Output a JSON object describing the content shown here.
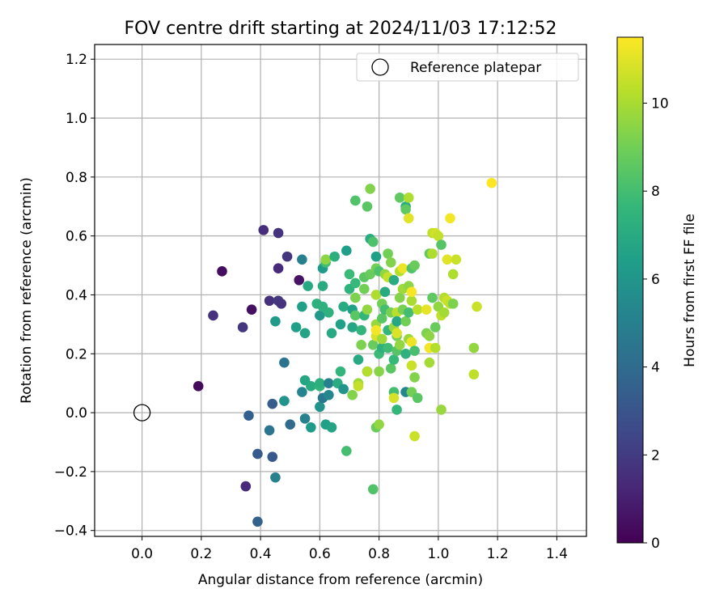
{
  "chart_data": {
    "type": "scatter",
    "title": "FOV centre drift starting at 2024/11/03 17:12:52",
    "xlabel": "Angular distance from reference (arcmin)",
    "ylabel": "Rotation from reference (arcmin)",
    "xlim": [
      -0.16,
      1.5
    ],
    "ylim": [
      -0.42,
      1.25
    ],
    "xticks": [
      0.0,
      0.2,
      0.4,
      0.6,
      0.8,
      1.0,
      1.2,
      1.4
    ],
    "yticks": [
      -0.4,
      -0.2,
      0.0,
      0.2,
      0.4,
      0.6,
      0.8,
      1.0,
      1.2
    ],
    "xtick_labels": [
      "0.0",
      "0.2",
      "0.4",
      "0.6",
      "0.8",
      "1.0",
      "1.2",
      "1.4"
    ],
    "ytick_labels": [
      "−0.4",
      "−0.2",
      "0.0",
      "0.2",
      "0.4",
      "0.6",
      "0.8",
      "1.0",
      "1.2"
    ],
    "grid": true,
    "legend": {
      "position": "top-right",
      "entries": [
        "Reference platepar"
      ]
    },
    "reference_point": {
      "x": 0.0,
      "y": 0.0
    },
    "colormap": "viridis",
    "colorbar": {
      "label": "Hours from first FF file",
      "min": 0,
      "max": 11.5,
      "ticks": [
        0,
        2,
        4,
        6,
        8,
        10
      ],
      "tick_labels": [
        "0",
        "2",
        "4",
        "6",
        "8",
        "10"
      ]
    },
    "points": [
      {
        "x": 0.19,
        "y": 0.09,
        "c": 0.3
      },
      {
        "x": 0.27,
        "y": 0.48,
        "c": 0.4
      },
      {
        "x": 0.24,
        "y": 0.33,
        "c": 1.6
      },
      {
        "x": 0.34,
        "y": 0.29,
        "c": 1.8
      },
      {
        "x": 0.37,
        "y": 0.35,
        "c": 0.5
      },
      {
        "x": 0.41,
        "y": 0.62,
        "c": 1.5
      },
      {
        "x": 0.43,
        "y": 0.38,
        "c": 1.6
      },
      {
        "x": 0.46,
        "y": 0.61,
        "c": 1.7
      },
      {
        "x": 0.46,
        "y": 0.49,
        "c": 1.4
      },
      {
        "x": 0.46,
        "y": 0.38,
        "c": 1.9
      },
      {
        "x": 0.47,
        "y": 0.37,
        "c": 1.7
      },
      {
        "x": 0.49,
        "y": 0.53,
        "c": 1.8
      },
      {
        "x": 0.53,
        "y": 0.45,
        "c": 0.6
      },
      {
        "x": 0.35,
        "y": -0.25,
        "c": 1.4
      },
      {
        "x": 0.36,
        "y": -0.01,
        "c": 3.5
      },
      {
        "x": 0.39,
        "y": -0.14,
        "c": 3.3
      },
      {
        "x": 0.39,
        "y": -0.37,
        "c": 3.6
      },
      {
        "x": 0.43,
        "y": -0.06,
        "c": 4.5
      },
      {
        "x": 0.44,
        "y": 0.03,
        "c": 3.4
      },
      {
        "x": 0.44,
        "y": -0.15,
        "c": 3.2
      },
      {
        "x": 0.45,
        "y": -0.22,
        "c": 5.0
      },
      {
        "x": 0.48,
        "y": 0.04,
        "c": 6.0
      },
      {
        "x": 0.48,
        "y": 0.17,
        "c": 4.4
      },
      {
        "x": 0.45,
        "y": 0.31,
        "c": 6.2
      },
      {
        "x": 0.5,
        "y": -0.04,
        "c": 4.0
      },
      {
        "x": 0.52,
        "y": 0.29,
        "c": 6.5
      },
      {
        "x": 0.54,
        "y": 0.52,
        "c": 5.0
      },
      {
        "x": 0.54,
        "y": 0.36,
        "c": 6.5
      },
      {
        "x": 0.55,
        "y": 0.27,
        "c": 6.7
      },
      {
        "x": 0.55,
        "y": 0.11,
        "c": 6.8
      },
      {
        "x": 0.55,
        "y": -0.02,
        "c": 5.0
      },
      {
        "x": 0.56,
        "y": 0.43,
        "c": 6.9
      },
      {
        "x": 0.57,
        "y": -0.05,
        "c": 6.3
      },
      {
        "x": 0.54,
        "y": 0.07,
        "c": 5.2
      },
      {
        "x": 0.57,
        "y": 0.09,
        "c": 7.0
      },
      {
        "x": 0.59,
        "y": 0.37,
        "c": 7.3
      },
      {
        "x": 0.6,
        "y": 0.09,
        "c": 7.6
      },
      {
        "x": 0.6,
        "y": 0.1,
        "c": 7.2
      },
      {
        "x": 0.6,
        "y": 0.02,
        "c": 5.9
      },
      {
        "x": 0.6,
        "y": 0.33,
        "c": 6.1
      },
      {
        "x": 0.61,
        "y": 0.49,
        "c": 6.3
      },
      {
        "x": 0.61,
        "y": 0.43,
        "c": 7.0
      },
      {
        "x": 0.61,
        "y": 0.36,
        "c": 7.3
      },
      {
        "x": 0.61,
        "y": 0.05,
        "c": 4.6
      },
      {
        "x": 0.62,
        "y": -0.04,
        "c": 6.5
      },
      {
        "x": 0.62,
        "y": 0.51,
        "c": 8.0
      },
      {
        "x": 0.62,
        "y": 0.52,
        "c": 9.5
      },
      {
        "x": 0.63,
        "y": 0.06,
        "c": 5.3
      },
      {
        "x": 0.63,
        "y": 0.1,
        "c": 5.0
      },
      {
        "x": 0.63,
        "y": 0.34,
        "c": 7.3
      },
      {
        "x": 0.64,
        "y": 0.27,
        "c": 6.9
      },
      {
        "x": 0.64,
        "y": -0.05,
        "c": 6.7
      },
      {
        "x": 0.65,
        "y": 0.53,
        "c": 7.2
      },
      {
        "x": 0.66,
        "y": 0.1,
        "c": 7.1
      },
      {
        "x": 0.67,
        "y": 0.14,
        "c": 7.5
      },
      {
        "x": 0.67,
        "y": 0.3,
        "c": 6.5
      },
      {
        "x": 0.68,
        "y": 0.08,
        "c": 6.0
      },
      {
        "x": 0.68,
        "y": 0.36,
        "c": 7.0
      },
      {
        "x": 0.69,
        "y": 0.55,
        "c": 6.4
      },
      {
        "x": 0.69,
        "y": -0.13,
        "c": 8.0
      },
      {
        "x": 0.7,
        "y": 0.47,
        "c": 7.8
      },
      {
        "x": 0.7,
        "y": 0.42,
        "c": 7.4
      },
      {
        "x": 0.71,
        "y": 0.29,
        "c": 6.8
      },
      {
        "x": 0.71,
        "y": 0.35,
        "c": 6.5
      },
      {
        "x": 0.71,
        "y": 0.06,
        "c": 9.3
      },
      {
        "x": 0.72,
        "y": 0.72,
        "c": 8.3
      },
      {
        "x": 0.72,
        "y": 0.44,
        "c": 7.7
      },
      {
        "x": 0.72,
        "y": 0.39,
        "c": 9.2
      },
      {
        "x": 0.72,
        "y": 0.33,
        "c": 8.5
      },
      {
        "x": 0.73,
        "y": 0.18,
        "c": 6.9
      },
      {
        "x": 0.73,
        "y": 0.1,
        "c": 9.8
      },
      {
        "x": 0.73,
        "y": 0.09,
        "c": 10.5
      },
      {
        "x": 0.74,
        "y": 0.23,
        "c": 9.2
      },
      {
        "x": 0.74,
        "y": 0.28,
        "c": 7.5
      },
      {
        "x": 0.75,
        "y": 0.46,
        "c": 8.5
      },
      {
        "x": 0.75,
        "y": 0.33,
        "c": 7.6
      },
      {
        "x": 0.75,
        "y": 0.42,
        "c": 9.0
      },
      {
        "x": 0.76,
        "y": 0.14,
        "c": 6.8
      },
      {
        "x": 0.76,
        "y": 0.7,
        "c": 8.5
      },
      {
        "x": 0.76,
        "y": 0.35,
        "c": 9.6
      },
      {
        "x": 0.76,
        "y": 0.14,
        "c": 10.2
      },
      {
        "x": 0.77,
        "y": 0.59,
        "c": 7.1
      },
      {
        "x": 0.77,
        "y": 0.47,
        "c": 8.8
      },
      {
        "x": 0.77,
        "y": 0.76,
        "c": 9.3
      },
      {
        "x": 0.78,
        "y": 0.58,
        "c": 8.2
      },
      {
        "x": 0.78,
        "y": 0.23,
        "c": 8.8
      },
      {
        "x": 0.78,
        "y": -0.26,
        "c": 8.3
      },
      {
        "x": 0.79,
        "y": 0.53,
        "c": 6.5
      },
      {
        "x": 0.79,
        "y": 0.49,
        "c": 9.0
      },
      {
        "x": 0.79,
        "y": 0.3,
        "c": 9.7
      },
      {
        "x": 0.79,
        "y": 0.26,
        "c": 10.8
      },
      {
        "x": 0.79,
        "y": 0.28,
        "c": 11.3
      },
      {
        "x": 0.79,
        "y": 0.4,
        "c": 10.1
      },
      {
        "x": 0.79,
        "y": -0.05,
        "c": 8.8
      },
      {
        "x": 0.8,
        "y": 0.2,
        "c": 7.8
      },
      {
        "x": 0.8,
        "y": 0.48,
        "c": 8.2
      },
      {
        "x": 0.8,
        "y": 0.14,
        "c": 9.4
      },
      {
        "x": 0.8,
        "y": -0.04,
        "c": 9.6
      },
      {
        "x": 0.81,
        "y": 0.22,
        "c": 7.3
      },
      {
        "x": 0.81,
        "y": 0.32,
        "c": 8.5
      },
      {
        "x": 0.81,
        "y": 0.37,
        "c": 9.0
      },
      {
        "x": 0.81,
        "y": 0.25,
        "c": 9.8
      },
      {
        "x": 0.82,
        "y": 0.41,
        "c": 7.0
      },
      {
        "x": 0.82,
        "y": 0.35,
        "c": 8.0
      },
      {
        "x": 0.82,
        "y": 0.47,
        "c": 9.6
      },
      {
        "x": 0.83,
        "y": 0.54,
        "c": 9.0
      },
      {
        "x": 0.83,
        "y": 0.46,
        "c": 10.5
      },
      {
        "x": 0.83,
        "y": 0.28,
        "c": 7.6
      },
      {
        "x": 0.83,
        "y": 0.22,
        "c": 7.9
      },
      {
        "x": 0.84,
        "y": 0.51,
        "c": 9.3
      },
      {
        "x": 0.84,
        "y": 0.34,
        "c": 9.1
      },
      {
        "x": 0.84,
        "y": 0.15,
        "c": 8.5
      },
      {
        "x": 0.85,
        "y": 0.07,
        "c": 8.0
      },
      {
        "x": 0.85,
        "y": 0.45,
        "c": 7.0
      },
      {
        "x": 0.85,
        "y": 0.29,
        "c": 9.7
      },
      {
        "x": 0.85,
        "y": 0.18,
        "c": 7.7
      },
      {
        "x": 0.85,
        "y": 0.05,
        "c": 10.8
      },
      {
        "x": 0.86,
        "y": 0.26,
        "c": 9.1
      },
      {
        "x": 0.86,
        "y": 0.27,
        "c": 10.9
      },
      {
        "x": 0.86,
        "y": 0.34,
        "c": 10.3
      },
      {
        "x": 0.86,
        "y": 0.01,
        "c": 7.6
      },
      {
        "x": 0.86,
        "y": 0.31,
        "c": 6.8
      },
      {
        "x": 0.86,
        "y": 0.21,
        "c": 8.4
      },
      {
        "x": 0.87,
        "y": 0.73,
        "c": 8.6
      },
      {
        "x": 0.87,
        "y": 0.39,
        "c": 9.3
      },
      {
        "x": 0.87,
        "y": 0.23,
        "c": 9.6
      },
      {
        "x": 0.87,
        "y": 0.48,
        "c": 10.2
      },
      {
        "x": 0.88,
        "y": 0.42,
        "c": 9.8
      },
      {
        "x": 0.88,
        "y": 0.35,
        "c": 9.1
      },
      {
        "x": 0.88,
        "y": 0.49,
        "c": 11.2
      },
      {
        "x": 0.89,
        "y": 0.07,
        "c": 5.3
      },
      {
        "x": 0.89,
        "y": 0.7,
        "c": 7.2
      },
      {
        "x": 0.89,
        "y": 0.69,
        "c": 8.6
      },
      {
        "x": 0.89,
        "y": 0.31,
        "c": 9.0
      },
      {
        "x": 0.89,
        "y": 0.2,
        "c": 7.3
      },
      {
        "x": 0.9,
        "y": 0.34,
        "c": 8.0
      },
      {
        "x": 0.9,
        "y": 0.25,
        "c": 9.7
      },
      {
        "x": 0.9,
        "y": 0.43,
        "c": 9.5
      },
      {
        "x": 0.9,
        "y": 0.73,
        "c": 10.1
      },
      {
        "x": 0.9,
        "y": 0.66,
        "c": 11.0
      },
      {
        "x": 0.91,
        "y": 0.07,
        "c": 9.0
      },
      {
        "x": 0.91,
        "y": 0.49,
        "c": 8.3
      },
      {
        "x": 0.91,
        "y": 0.38,
        "c": 10.0
      },
      {
        "x": 0.91,
        "y": 0.41,
        "c": 11.4
      },
      {
        "x": 0.91,
        "y": 0.16,
        "c": 10.6
      },
      {
        "x": 0.91,
        "y": 0.24,
        "c": 11.2
      },
      {
        "x": 0.92,
        "y": 0.21,
        "c": 8.1
      },
      {
        "x": 0.92,
        "y": 0.12,
        "c": 9.3
      },
      {
        "x": 0.92,
        "y": -0.08,
        "c": 10.6
      },
      {
        "x": 0.92,
        "y": 0.5,
        "c": 8.8
      },
      {
        "x": 0.93,
        "y": 0.05,
        "c": 8.5
      },
      {
        "x": 0.93,
        "y": 0.35,
        "c": 10.3
      },
      {
        "x": 0.96,
        "y": 0.27,
        "c": 9.2
      },
      {
        "x": 0.96,
        "y": 0.35,
        "c": 11.1
      },
      {
        "x": 0.97,
        "y": 0.54,
        "c": 8.7
      },
      {
        "x": 0.97,
        "y": 0.26,
        "c": 9.5
      },
      {
        "x": 0.97,
        "y": 0.17,
        "c": 9.9
      },
      {
        "x": 0.97,
        "y": 0.22,
        "c": 11.3
      },
      {
        "x": 0.98,
        "y": 0.39,
        "c": 8.6
      },
      {
        "x": 0.98,
        "y": 0.54,
        "c": 10.1
      },
      {
        "x": 0.98,
        "y": 0.61,
        "c": 10.4
      },
      {
        "x": 0.99,
        "y": 0.29,
        "c": 8.8
      },
      {
        "x": 0.99,
        "y": 0.61,
        "c": 10.7
      },
      {
        "x": 0.99,
        "y": 0.22,
        "c": 10.2
      },
      {
        "x": 1.0,
        "y": 0.6,
        "c": 10.5
      },
      {
        "x": 1.0,
        "y": 0.36,
        "c": 9.6
      },
      {
        "x": 1.01,
        "y": 0.57,
        "c": 8.4
      },
      {
        "x": 1.01,
        "y": 0.33,
        "c": 10.4
      },
      {
        "x": 1.01,
        "y": 0.01,
        "c": 9.7
      },
      {
        "x": 1.02,
        "y": 0.39,
        "c": 10.2
      },
      {
        "x": 1.02,
        "y": 0.34,
        "c": 9.9
      },
      {
        "x": 1.03,
        "y": 0.38,
        "c": 10.6
      },
      {
        "x": 1.03,
        "y": 0.52,
        "c": 11.0
      },
      {
        "x": 1.04,
        "y": 0.66,
        "c": 11.3
      },
      {
        "x": 1.04,
        "y": 0.37,
        "c": 10.4
      },
      {
        "x": 1.05,
        "y": 0.37,
        "c": 9.2
      },
      {
        "x": 1.05,
        "y": 0.47,
        "c": 10.1
      },
      {
        "x": 1.06,
        "y": 0.52,
        "c": 10.6
      },
      {
        "x": 1.12,
        "y": 0.22,
        "c": 9.6
      },
      {
        "x": 1.12,
        "y": 0.13,
        "c": 10.4
      },
      {
        "x": 1.13,
        "y": 0.36,
        "c": 10.6
      },
      {
        "x": 1.18,
        "y": 0.78,
        "c": 11.5
      }
    ]
  }
}
